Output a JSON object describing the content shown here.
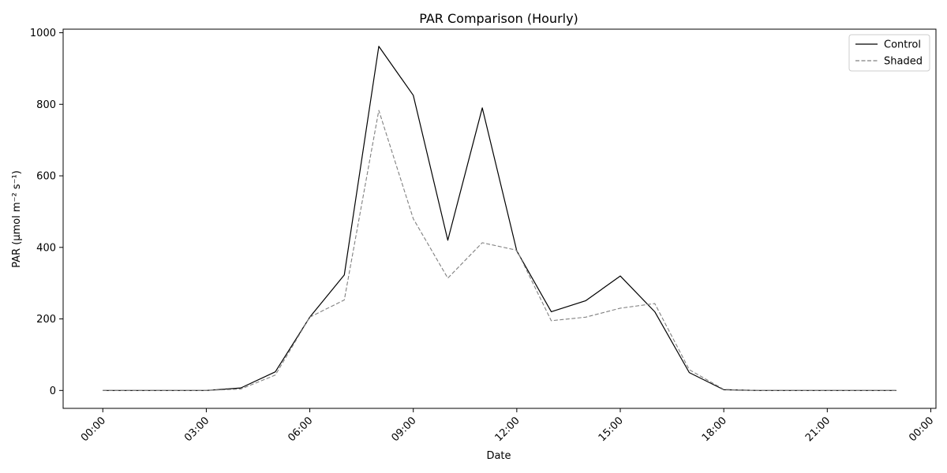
{
  "chart_data": {
    "type": "line",
    "title": "PAR Comparison (Hourly)",
    "xlabel": "Date",
    "ylabel": "PAR (µmol m⁻² s⁻¹)",
    "x": [
      "00:00",
      "01:00",
      "02:00",
      "03:00",
      "04:00",
      "05:00",
      "06:00",
      "07:00",
      "08:00",
      "09:00",
      "10:00",
      "11:00",
      "12:00",
      "13:00",
      "14:00",
      "15:00",
      "16:00",
      "17:00",
      "18:00",
      "19:00",
      "20:00",
      "21:00",
      "22:00",
      "23:00"
    ],
    "xticks": [
      "00:00",
      "03:00",
      "06:00",
      "09:00",
      "12:00",
      "15:00",
      "18:00",
      "21:00",
      "00:00"
    ],
    "xlim_hours": [
      -1.15,
      24.15
    ],
    "ylim": [
      -50,
      1010
    ],
    "yticks": [
      0,
      200,
      400,
      600,
      800,
      1000
    ],
    "grid": false,
    "legend_position": "top-right",
    "series": [
      {
        "name": "Control",
        "color": "#000000",
        "dash": "solid",
        "values": [
          0,
          0,
          0,
          0,
          7,
          52,
          205,
          323,
          962,
          825,
          420,
          790,
          390,
          220,
          251,
          320,
          220,
          50,
          2,
          0,
          0,
          0,
          0,
          0
        ]
      },
      {
        "name": "Shaded",
        "color": "#808080",
        "dash": "dashed",
        "values": [
          0,
          0,
          0,
          0,
          4,
          43,
          205,
          253,
          783,
          480,
          314,
          413,
          392,
          195,
          205,
          230,
          243,
          58,
          3,
          0,
          0,
          0,
          0,
          0
        ]
      }
    ]
  }
}
